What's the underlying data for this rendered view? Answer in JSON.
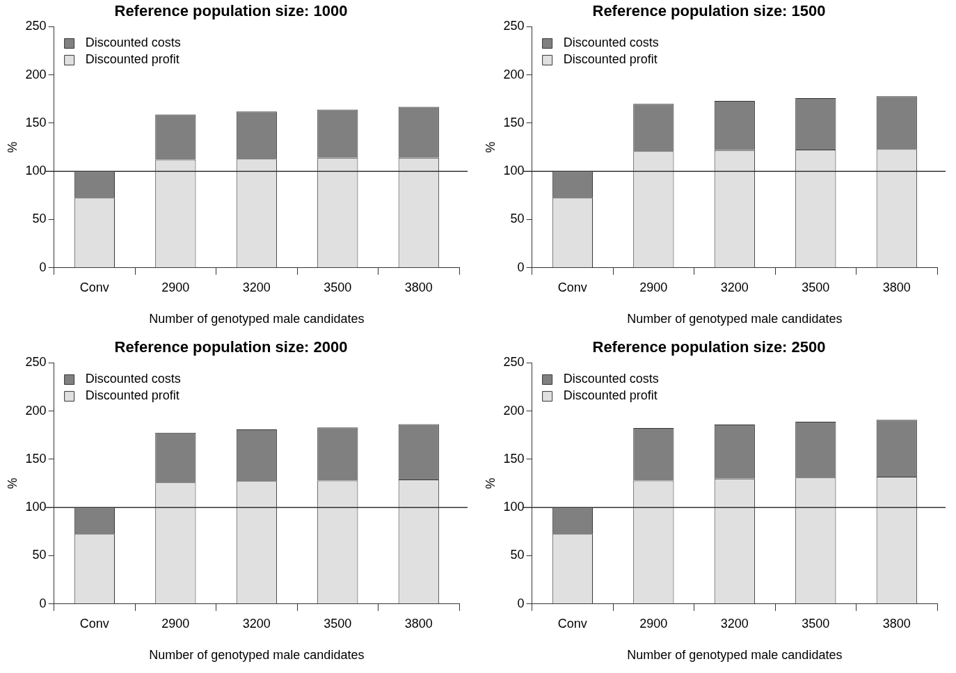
{
  "chart_data": [
    {
      "type": "bar",
      "title": "Reference population size: 1000",
      "xlabel": "Number of genotyped male candidates",
      "ylabel": "%",
      "categories": [
        "Conv",
        "2900",
        "3200",
        "3500",
        "3800"
      ],
      "stacked": true,
      "ylim": [
        0,
        250
      ],
      "yticks": [
        0,
        50,
        100,
        150,
        200,
        250
      ],
      "grid": false,
      "legend": "top left",
      "ref_lines": [
        {
          "axis": "y",
          "value": 100,
          "color": "#333333"
        }
      ],
      "series": [
        {
          "name": "Discounted profit",
          "color": "#e0e0e0",
          "values": [
            72.5,
            112,
            113,
            114,
            114
          ]
        },
        {
          "name": "Discounted costs",
          "color": "#808080",
          "values": [
            27.5,
            47,
            49,
            50,
            53
          ]
        }
      ]
    },
    {
      "type": "bar",
      "title": "Reference population size: 1500",
      "xlabel": "Number of genotyped male candidates",
      "ylabel": "%",
      "categories": [
        "Conv",
        "2900",
        "3200",
        "3500",
        "3800"
      ],
      "stacked": true,
      "ylim": [
        0,
        250
      ],
      "yticks": [
        0,
        50,
        100,
        150,
        200,
        250
      ],
      "grid": false,
      "legend": "top left",
      "ref_lines": [
        {
          "axis": "y",
          "value": 100,
          "color": "#333333"
        }
      ],
      "series": [
        {
          "name": "Discounted profit",
          "color": "#e0e0e0",
          "values": [
            72.5,
            121,
            122,
            122.5,
            123
          ]
        },
        {
          "name": "Discounted costs",
          "color": "#808080",
          "values": [
            27.5,
            49,
            51,
            53.5,
            55
          ]
        }
      ]
    },
    {
      "type": "bar",
      "title": "Reference population size: 2000",
      "xlabel": "Number of genotyped male candidates",
      "ylabel": "%",
      "categories": [
        "Conv",
        "2900",
        "3200",
        "3500",
        "3800"
      ],
      "stacked": true,
      "ylim": [
        0,
        250
      ],
      "yticks": [
        0,
        50,
        100,
        150,
        200,
        250
      ],
      "grid": false,
      "legend": "top left",
      "ref_lines": [
        {
          "axis": "y",
          "value": 100,
          "color": "#333333"
        }
      ],
      "series": [
        {
          "name": "Discounted profit",
          "color": "#e0e0e0",
          "values": [
            72.5,
            126,
            127.5,
            128,
            129
          ]
        },
        {
          "name": "Discounted costs",
          "color": "#808080",
          "values": [
            27.5,
            51.5,
            53.5,
            55,
            57.5
          ]
        }
      ]
    },
    {
      "type": "bar",
      "title": "Reference population size: 2500",
      "xlabel": "Number of genotyped male candidates",
      "ylabel": "%",
      "categories": [
        "Conv",
        "2900",
        "3200",
        "3500",
        "3800"
      ],
      "stacked": true,
      "ylim": [
        0,
        250
      ],
      "yticks": [
        0,
        50,
        100,
        150,
        200,
        250
      ],
      "grid": false,
      "legend": "top left",
      "ref_lines": [
        {
          "axis": "y",
          "value": 100,
          "color": "#333333"
        }
      ],
      "series": [
        {
          "name": "Discounted profit",
          "color": "#e0e0e0",
          "values": [
            72.5,
            128,
            130,
            131,
            132
          ]
        },
        {
          "name": "Discounted costs",
          "color": "#808080",
          "values": [
            27.5,
            54.5,
            56,
            58,
            59
          ]
        }
      ]
    }
  ]
}
